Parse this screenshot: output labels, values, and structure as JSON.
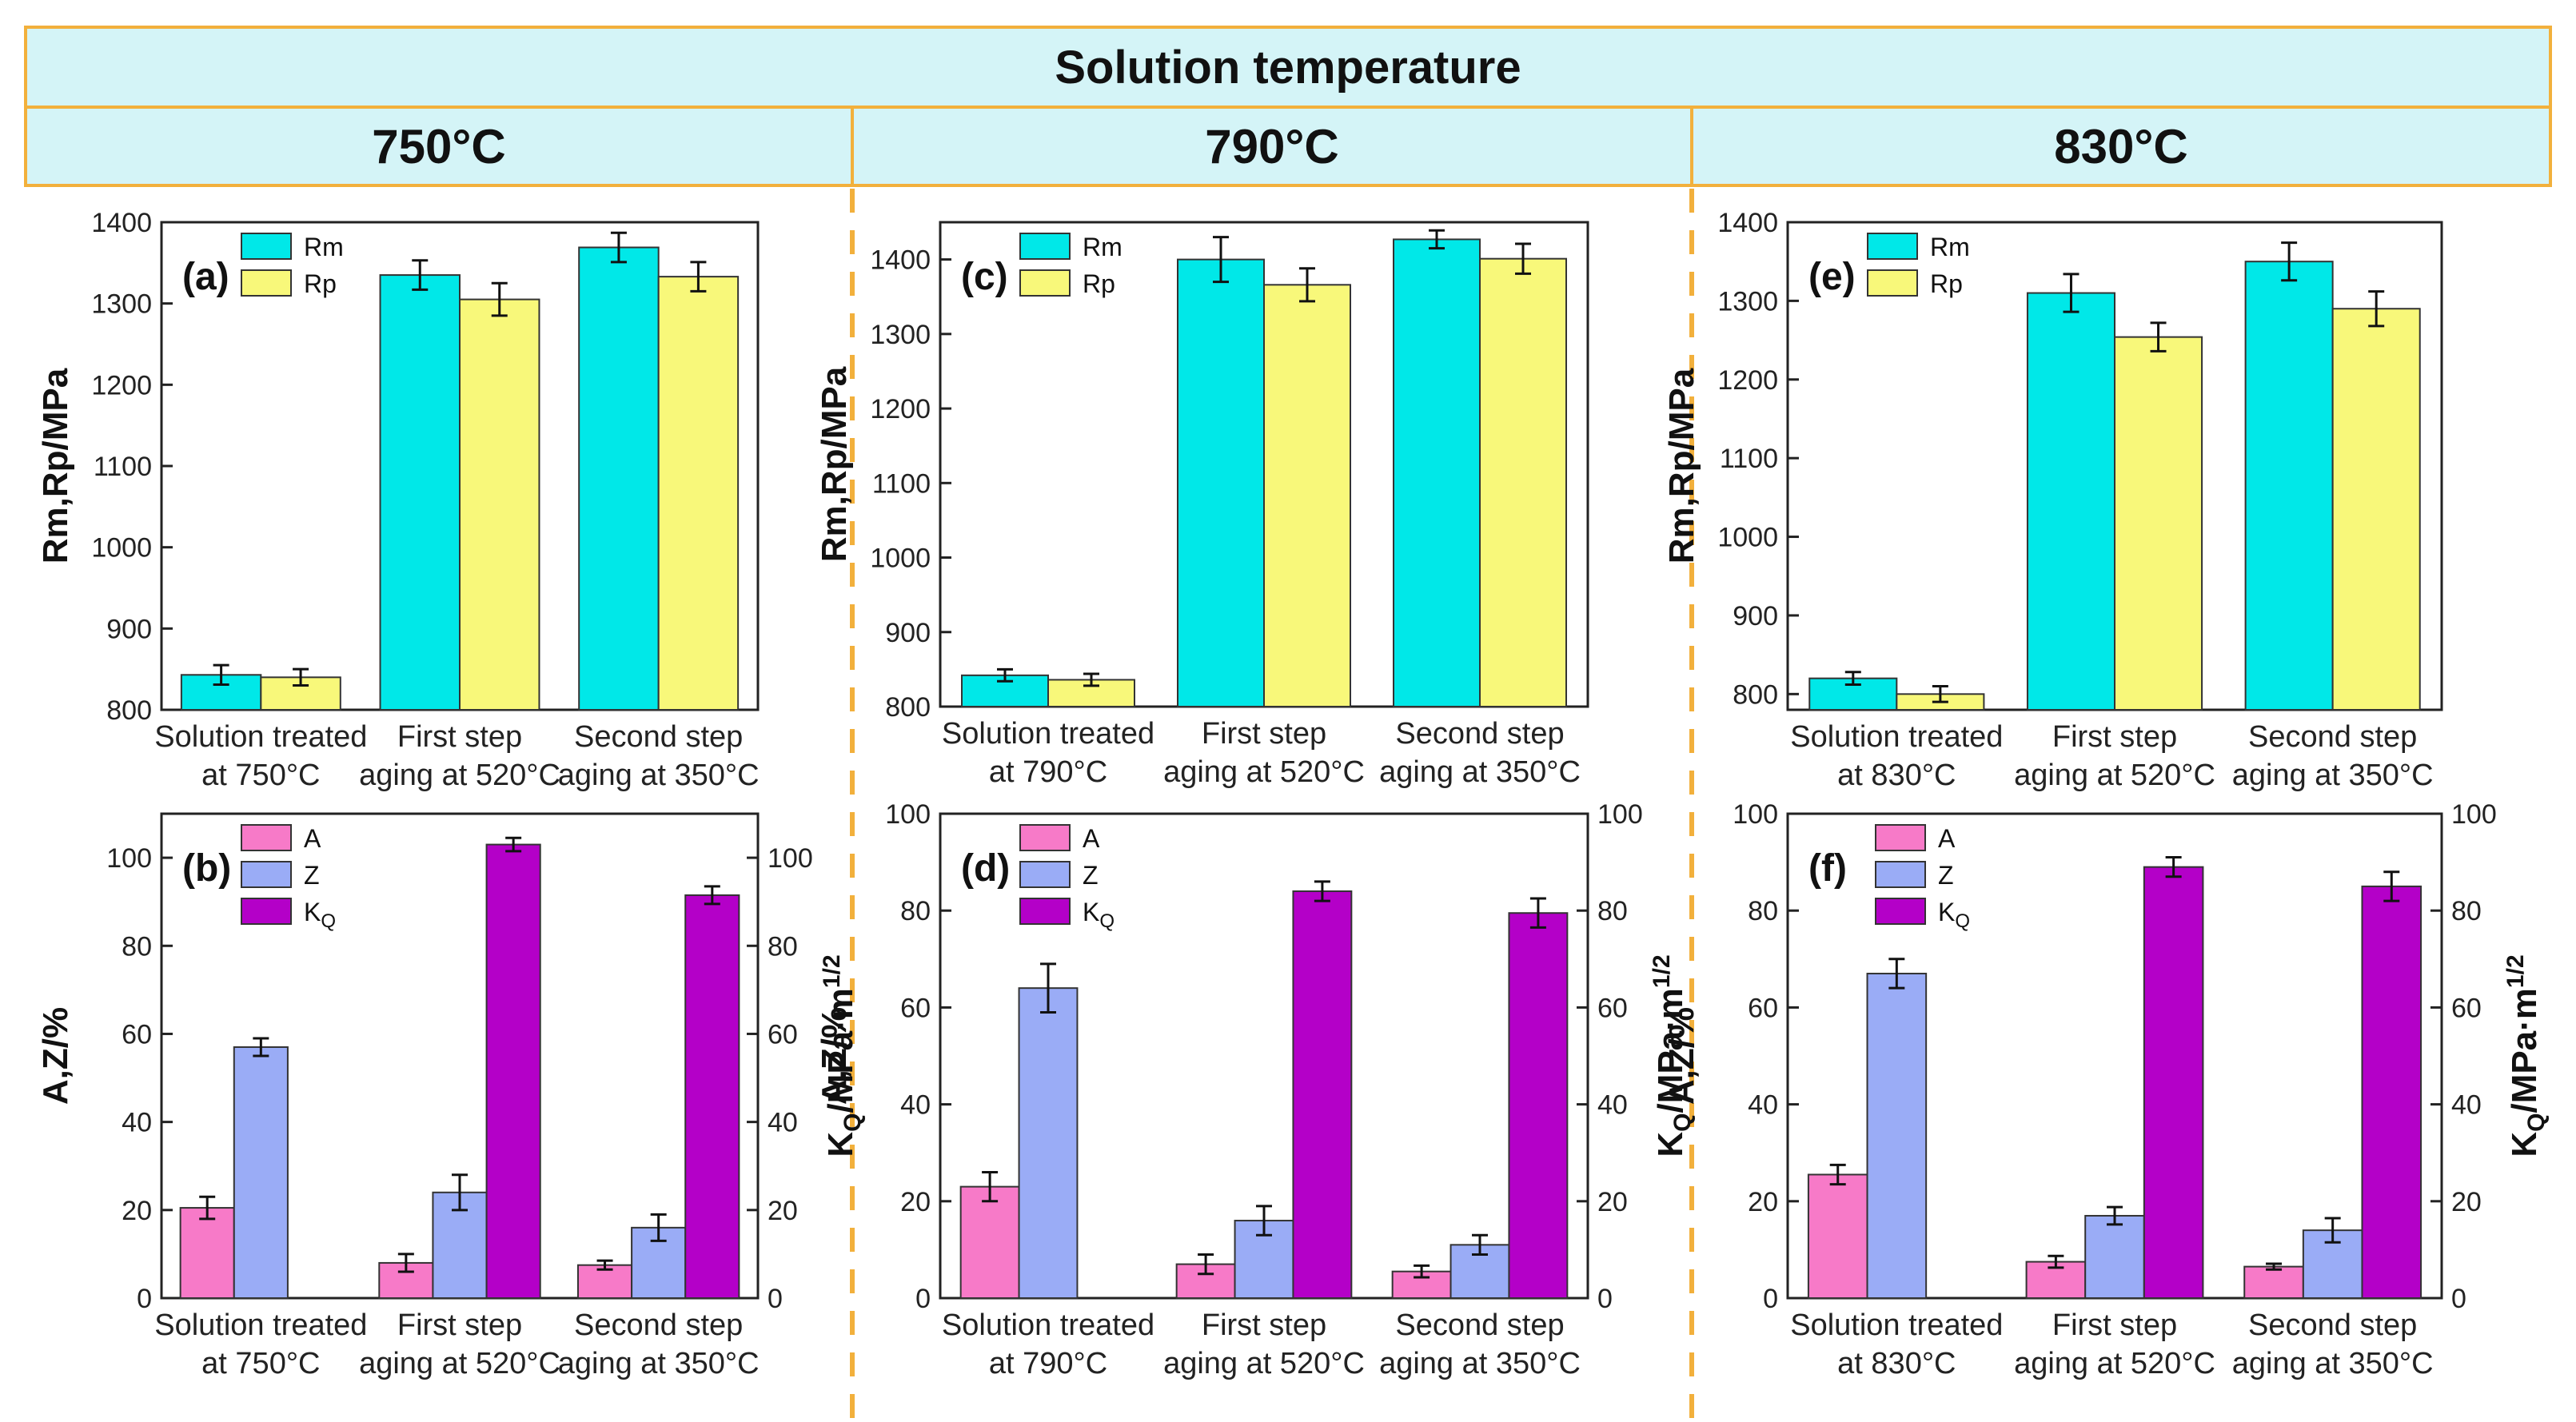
{
  "header": {
    "title": "Solution temperature",
    "columns": [
      "750°C",
      "790°C",
      "830°C"
    ]
  },
  "colors": {
    "header_bg": "#d4f4f7",
    "header_border": "#f2b03c",
    "divider": "#f2b03c",
    "Rm": "#00e8e8",
    "Rp": "#f8f87a",
    "A": "#f77ac8",
    "Z": "#9aacf6",
    "KQ": "#b400c8"
  },
  "chart_data": [
    {
      "panel": "(a)",
      "type": "bar",
      "kind": "strength",
      "ylabel": "Rm,Rp/MPa",
      "ylim": [
        800,
        1400
      ],
      "yticks": [
        800,
        900,
        1000,
        1100,
        1200,
        1300,
        1400
      ],
      "categories": [
        [
          "Solution treated",
          "at 750°C"
        ],
        [
          "First step",
          "aging at 520°C"
        ],
        [
          "Second step",
          "aging at 350°C"
        ]
      ],
      "series": [
        {
          "name": "Rm",
          "values": [
            843,
            1335,
            1369
          ],
          "errors": [
            12,
            18,
            18
          ]
        },
        {
          "name": "Rp",
          "values": [
            840,
            1305,
            1333
          ],
          "errors": [
            10,
            20,
            18
          ]
        }
      ]
    },
    {
      "panel": "(b)",
      "type": "bar",
      "kind": "ductility",
      "ylabel": "A,Z/%",
      "y2label": "KQ/MPa·m1/2",
      "ylim": [
        0,
        110
      ],
      "yticks": [
        0,
        20,
        40,
        60,
        80,
        100
      ],
      "y2lim": [
        0,
        110
      ],
      "y2ticks": [
        0,
        20,
        40,
        60,
        80,
        100
      ],
      "categories": [
        [
          "Solution treated",
          "at 750°C"
        ],
        [
          "First step",
          "aging at 520°C"
        ],
        [
          "Second step",
          "aging at 350°C"
        ]
      ],
      "series": [
        {
          "name": "A",
          "values": [
            20.5,
            8,
            7.5
          ],
          "errors": [
            2.5,
            2,
            1
          ]
        },
        {
          "name": "Z",
          "values": [
            57,
            24,
            16
          ],
          "errors": [
            2,
            4,
            3
          ]
        },
        {
          "name": "KQ",
          "values": [
            null,
            103,
            91.5
          ],
          "errors": [
            null,
            1.5,
            2
          ]
        }
      ]
    },
    {
      "panel": "(c)",
      "type": "bar",
      "kind": "strength",
      "ylabel": "Rm,Rp/MPa",
      "ylim": [
        800,
        1450
      ],
      "yticks": [
        800,
        900,
        1000,
        1100,
        1200,
        1300,
        1400
      ],
      "categories": [
        [
          "Solution treated",
          "at 790°C"
        ],
        [
          "First step",
          "aging at 520°C"
        ],
        [
          "Second step",
          "aging at 350°C"
        ]
      ],
      "series": [
        {
          "name": "Rm",
          "values": [
            842,
            1400,
            1427
          ],
          "errors": [
            8,
            30,
            12
          ]
        },
        {
          "name": "Rp",
          "values": [
            836,
            1366,
            1401
          ],
          "errors": [
            8,
            22,
            20
          ]
        }
      ]
    },
    {
      "panel": "(d)",
      "type": "bar",
      "kind": "ductility",
      "ylabel": "A,Z/%",
      "y2label": "KQ/MPa·m1/2",
      "ylim": [
        0,
        100
      ],
      "yticks": [
        0,
        20,
        40,
        60,
        80,
        100
      ],
      "y2lim": [
        0,
        100
      ],
      "y2ticks": [
        0,
        20,
        40,
        60,
        80,
        100
      ],
      "categories": [
        [
          "Solution treated",
          "at 790°C"
        ],
        [
          "First step",
          "aging at 520°C"
        ],
        [
          "Second step",
          "aging at 350°C"
        ]
      ],
      "series": [
        {
          "name": "A",
          "values": [
            23,
            7,
            5.5
          ],
          "errors": [
            3,
            2,
            1.2
          ]
        },
        {
          "name": "Z",
          "values": [
            64,
            16,
            11
          ],
          "errors": [
            5,
            3,
            2
          ]
        },
        {
          "name": "KQ",
          "values": [
            null,
            84,
            79.5
          ],
          "errors": [
            null,
            2,
            3
          ]
        }
      ]
    },
    {
      "panel": "(e)",
      "type": "bar",
      "kind": "strength",
      "ylabel": "Rm,Rp/MPa",
      "ylim": [
        780,
        1400
      ],
      "yticks": [
        800,
        900,
        1000,
        1100,
        1200,
        1300,
        1400
      ],
      "categories": [
        [
          "Solution treated",
          "at 830°C"
        ],
        [
          "First step",
          "aging at 520°C"
        ],
        [
          "Second step",
          "aging at 350°C"
        ]
      ],
      "series": [
        {
          "name": "Rm",
          "values": [
            820,
            1310,
            1350
          ],
          "errors": [
            8,
            24,
            24
          ]
        },
        {
          "name": "Rp",
          "values": [
            800,
            1254,
            1290
          ],
          "errors": [
            10,
            18,
            22
          ]
        }
      ]
    },
    {
      "panel": "(f)",
      "type": "bar",
      "kind": "ductility",
      "ylabel": "A,Z/%",
      "y2label": "KQ/MPa·m1/2",
      "ylim": [
        0,
        100
      ],
      "yticks": [
        0,
        20,
        40,
        60,
        80,
        100
      ],
      "y2lim": [
        0,
        100
      ],
      "y2ticks": [
        0,
        20,
        40,
        60,
        80,
        100
      ],
      "categories": [
        [
          "Solution treated",
          "at 830°C"
        ],
        [
          "First step",
          "aging at 520°C"
        ],
        [
          "Second step",
          "aging at 350°C"
        ]
      ],
      "series": [
        {
          "name": "A",
          "values": [
            25.5,
            7.5,
            6.5
          ],
          "errors": [
            2,
            1.2,
            0.6
          ]
        },
        {
          "name": "Z",
          "values": [
            67,
            17,
            14
          ],
          "errors": [
            3,
            1.8,
            2.5
          ]
        },
        {
          "name": "KQ",
          "values": [
            null,
            89,
            85
          ],
          "errors": [
            null,
            2,
            3
          ]
        }
      ]
    }
  ]
}
